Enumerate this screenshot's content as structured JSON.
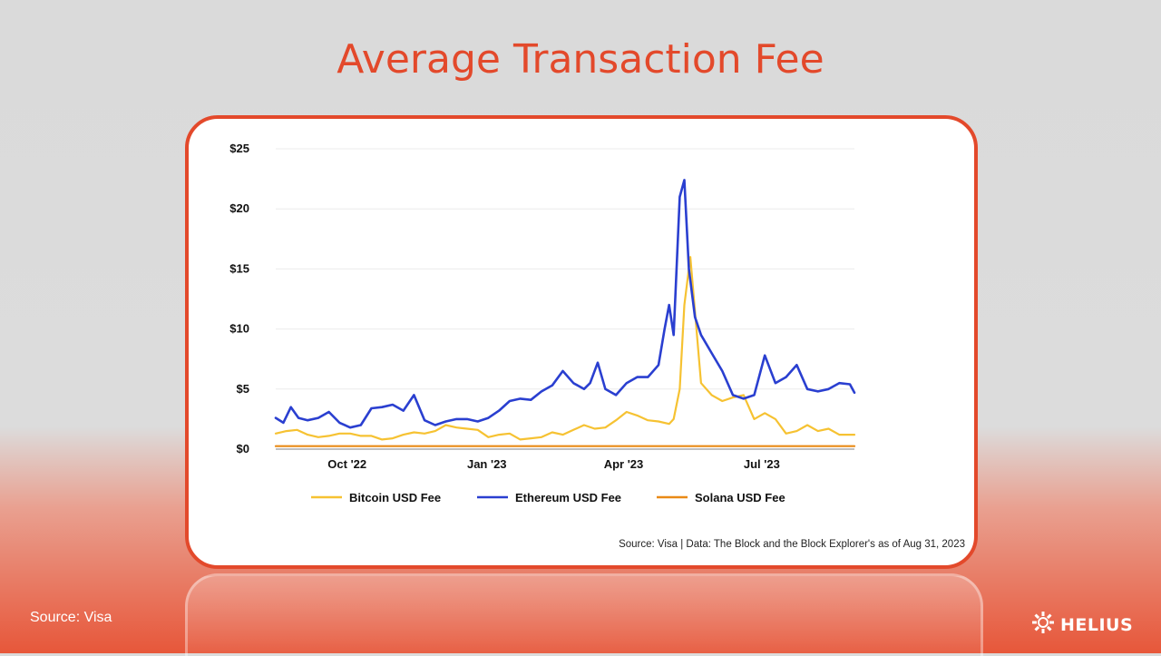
{
  "slide": {
    "title": "Average Transaction Fee",
    "source_label": "Source: Visa",
    "brand_name": "HELIUS"
  },
  "colors": {
    "accent": "#e3492b",
    "bitcoin": "#f6c232",
    "ethereum": "#2a3fd0",
    "solana": "#e98a16"
  },
  "chart_data": {
    "type": "line",
    "xlabel": "",
    "ylabel": "",
    "ylim": [
      0,
      25
    ],
    "xlim": [
      "2022-08-15",
      "2023-08-31"
    ],
    "yticks": [
      0,
      5,
      10,
      15,
      20,
      25
    ],
    "ytick_labels": [
      "$0",
      "$5",
      "$10",
      "$15",
      "$20",
      "$25"
    ],
    "xticks": [
      "2022-10-01",
      "2023-01-01",
      "2023-04-01",
      "2023-07-01"
    ],
    "xtick_labels": [
      "Oct '22",
      "Jan '23",
      "Apr '23",
      "Jul '23"
    ],
    "grid": true,
    "legend_position": "bottom",
    "source_note": "Source: Visa | Data: The Block and the Block Explorer's as of Aug 31, 2023",
    "series": [
      {
        "name": "Bitcoin USD Fee",
        "color": "#f6c232",
        "x": [
          "2022-08-15",
          "2022-08-22",
          "2022-08-29",
          "2022-09-05",
          "2022-09-12",
          "2022-09-19",
          "2022-09-26",
          "2022-10-03",
          "2022-10-10",
          "2022-10-17",
          "2022-10-24",
          "2022-10-31",
          "2022-11-07",
          "2022-11-14",
          "2022-11-21",
          "2022-11-28",
          "2022-12-05",
          "2022-12-12",
          "2022-12-19",
          "2022-12-26",
          "2023-01-02",
          "2023-01-09",
          "2023-01-16",
          "2023-01-23",
          "2023-01-30",
          "2023-02-06",
          "2023-02-13",
          "2023-02-20",
          "2023-02-27",
          "2023-03-06",
          "2023-03-13",
          "2023-03-20",
          "2023-03-27",
          "2023-04-03",
          "2023-04-10",
          "2023-04-17",
          "2023-04-24",
          "2023-05-01",
          "2023-05-04",
          "2023-05-08",
          "2023-05-11",
          "2023-05-15",
          "2023-05-22",
          "2023-05-29",
          "2023-06-05",
          "2023-06-12",
          "2023-06-19",
          "2023-06-26",
          "2023-07-03",
          "2023-07-10",
          "2023-07-17",
          "2023-07-24",
          "2023-07-31",
          "2023-08-07",
          "2023-08-14",
          "2023-08-21",
          "2023-08-31"
        ],
        "y": [
          1.3,
          1.5,
          1.6,
          1.2,
          1.0,
          1.1,
          1.3,
          1.3,
          1.1,
          1.1,
          0.8,
          0.9,
          1.2,
          1.4,
          1.3,
          1.5,
          2.0,
          1.8,
          1.7,
          1.6,
          1.0,
          1.2,
          1.3,
          0.8,
          0.9,
          1.0,
          1.4,
          1.2,
          1.6,
          2.0,
          1.7,
          1.8,
          2.4,
          3.1,
          2.8,
          2.4,
          2.3,
          2.1,
          2.5,
          5.0,
          12.0,
          16.0,
          5.5,
          4.5,
          4.0,
          4.3,
          4.5,
          2.5,
          3.0,
          2.5,
          1.3,
          1.5,
          2.0,
          1.5,
          1.7,
          1.2,
          1.2
        ]
      },
      {
        "name": "Ethereum USD Fee",
        "color": "#2a3fd0",
        "x": [
          "2022-08-15",
          "2022-08-20",
          "2022-08-25",
          "2022-08-30",
          "2022-09-05",
          "2022-09-12",
          "2022-09-19",
          "2022-09-26",
          "2022-10-03",
          "2022-10-10",
          "2022-10-17",
          "2022-10-24",
          "2022-10-31",
          "2022-11-07",
          "2022-11-14",
          "2022-11-21",
          "2022-11-28",
          "2022-12-05",
          "2022-12-12",
          "2022-12-19",
          "2022-12-26",
          "2023-01-02",
          "2023-01-09",
          "2023-01-16",
          "2023-01-23",
          "2023-01-30",
          "2023-02-06",
          "2023-02-13",
          "2023-02-20",
          "2023-02-27",
          "2023-03-06",
          "2023-03-10",
          "2023-03-15",
          "2023-03-20",
          "2023-03-27",
          "2023-04-03",
          "2023-04-10",
          "2023-04-17",
          "2023-04-24",
          "2023-04-28",
          "2023-05-01",
          "2023-05-04",
          "2023-05-08",
          "2023-05-11",
          "2023-05-14",
          "2023-05-18",
          "2023-05-22",
          "2023-05-29",
          "2023-06-05",
          "2023-06-12",
          "2023-06-19",
          "2023-06-26",
          "2023-07-03",
          "2023-07-10",
          "2023-07-17",
          "2023-07-24",
          "2023-07-31",
          "2023-08-07",
          "2023-08-14",
          "2023-08-21",
          "2023-08-28",
          "2023-08-31"
        ],
        "y": [
          2.6,
          2.2,
          3.5,
          2.6,
          2.4,
          2.6,
          3.1,
          2.2,
          1.8,
          2.0,
          3.4,
          3.5,
          3.7,
          3.2,
          4.5,
          2.4,
          2.0,
          2.3,
          2.5,
          2.5,
          2.3,
          2.6,
          3.2,
          4.0,
          4.2,
          4.1,
          4.8,
          5.3,
          6.5,
          5.5,
          5.0,
          5.5,
          7.2,
          5.0,
          4.5,
          5.5,
          6.0,
          6.0,
          7.0,
          10.0,
          12.0,
          9.5,
          21.0,
          22.4,
          15.0,
          11.0,
          9.5,
          8.0,
          6.5,
          4.5,
          4.2,
          4.5,
          7.8,
          5.5,
          6.0,
          7.0,
          5.0,
          4.8,
          5.0,
          5.5,
          5.4,
          4.7
        ]
      },
      {
        "name": "Solana USD Fee",
        "color": "#e98a16",
        "x": [
          "2022-08-15",
          "2023-08-31"
        ],
        "y": [
          0.25,
          0.25
        ]
      }
    ]
  }
}
